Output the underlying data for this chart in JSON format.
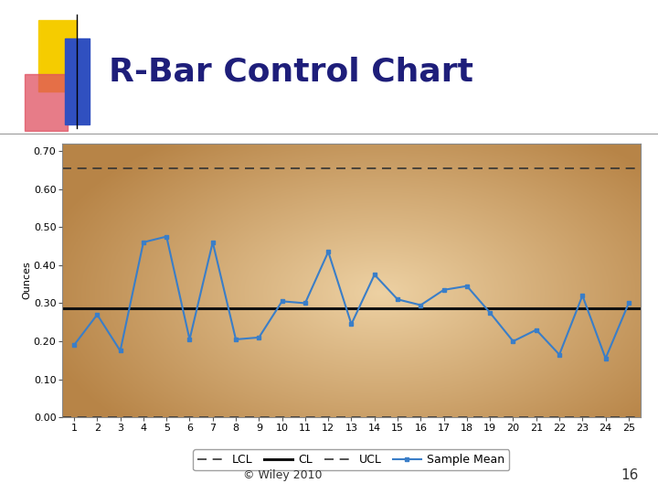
{
  "title": "R-Bar Control Chart",
  "ylabel": "Ounces",
  "ucl": 0.654,
  "lcl": 0.0,
  "cl": 0.287,
  "ylim": [
    0.0,
    0.72
  ],
  "yticks": [
    0.0,
    0.1,
    0.2,
    0.3,
    0.4,
    0.5,
    0.6,
    0.7
  ],
  "x": [
    1,
    2,
    3,
    4,
    5,
    6,
    7,
    8,
    9,
    10,
    11,
    12,
    13,
    14,
    15,
    16,
    17,
    18,
    19,
    20,
    21,
    22,
    23,
    24,
    25
  ],
  "sample_mean": [
    0.19,
    0.27,
    0.175,
    0.46,
    0.475,
    0.205,
    0.46,
    0.205,
    0.21,
    0.305,
    0.3,
    0.435,
    0.245,
    0.375,
    0.31,
    0.295,
    0.335,
    0.345,
    0.275,
    0.2,
    0.23,
    0.165,
    0.32,
    0.155,
    0.3
  ],
  "line_color": "#3A7EC8",
  "cl_color": "#111111",
  "dashed_color": "#333333",
  "marker": "s",
  "marker_size": 3.5,
  "line_width": 1.5,
  "title_color": "#1E1E7A",
  "title_fontsize": 26,
  "axis_fontsize": 8,
  "legend_fontsize": 9,
  "ylabel_fontsize": 8,
  "page_bg": "#FFFFFF",
  "copyright_text": "© Wiley 2010",
  "page_number": "16",
  "gold_color": "#F5CC00",
  "red_color": "#E05060",
  "blue_deco_color": "#3050C0",
  "chart_bg_edge": "#B8864A",
  "chart_bg_mid": "#E8C88A"
}
